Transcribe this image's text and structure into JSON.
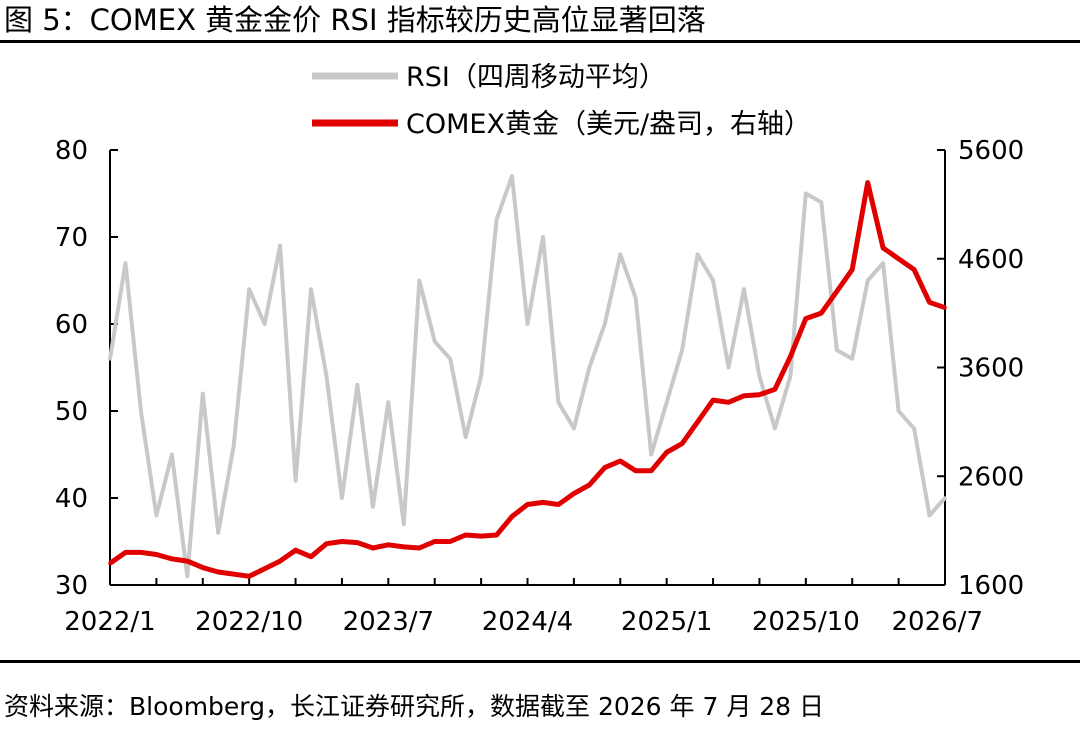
{
  "figure": {
    "title": "图 5：COMEX 黄金金价 RSI 指标较历史高位显著回落",
    "source": "资料来源：Bloomberg，长江证券研究所，数据截至 2026 年 7 月 28 日"
  },
  "colors": {
    "rsi": "#c8c8c8",
    "gold": "#e00000",
    "axis": "#000000"
  },
  "chart_data": {
    "type": "line",
    "title": "",
    "legend_position": "top",
    "x": [
      "2022/1",
      "2022/2",
      "2022/3",
      "2022/4",
      "2022/5",
      "2022/6",
      "2022/7",
      "2022/8",
      "2022/9",
      "2022/10",
      "2022/11",
      "2022/12",
      "2023/1",
      "2023/2",
      "2023/3",
      "2023/4",
      "2023/5",
      "2023/6",
      "2023/7",
      "2023/8",
      "2023/9",
      "2023/10",
      "2023/11",
      "2023/12",
      "2024/1",
      "2024/2",
      "2024/3",
      "2024/4",
      "2024/5",
      "2024/6",
      "2024/7",
      "2024/8",
      "2024/9",
      "2024/10",
      "2024/11",
      "2024/12",
      "2025/1",
      "2025/2",
      "2025/3",
      "2025/4",
      "2025/5",
      "2025/6",
      "2025/7",
      "2025/8",
      "2025/9",
      "2025/10",
      "2025/11",
      "2025/12",
      "2026/1",
      "2026/2",
      "2026/3",
      "2026/4",
      "2026/5",
      "2026/6",
      "2026/7"
    ],
    "x_tick_labels": [
      "2022/1",
      "2022/10",
      "2023/7",
      "2024/4",
      "2025/1",
      "2025/10",
      "2026/7"
    ],
    "y_left": {
      "ticks": [
        30,
        40,
        50,
        60,
        70,
        80
      ],
      "ylim": [
        30,
        80
      ]
    },
    "y_right": {
      "ticks": [
        1600,
        2600,
        3600,
        4600,
        5600
      ],
      "ylim": [
        1600,
        5600
      ]
    },
    "series": [
      {
        "name": "RSI（四周移动平均）",
        "axis": "left",
        "values": [
          56,
          67,
          50,
          38,
          45,
          31,
          52,
          36,
          46,
          64,
          60,
          69,
          42,
          64,
          54,
          40,
          53,
          39,
          51,
          37,
          65,
          58,
          56,
          47,
          54,
          72,
          77,
          60,
          70,
          51,
          48,
          55,
          60,
          68,
          63,
          45,
          51,
          57,
          68,
          65,
          55,
          64,
          54,
          48,
          54,
          75,
          74,
          57,
          56,
          65,
          67,
          50,
          48,
          38,
          40
        ]
      },
      {
        "name": "COMEX黄金（美元/盎司，右轴）",
        "axis": "right",
        "values": [
          1800,
          1900,
          1900,
          1880,
          1840,
          1820,
          1760,
          1720,
          1700,
          1680,
          1750,
          1820,
          1920,
          1860,
          1980,
          2000,
          1990,
          1940,
          1970,
          1950,
          1940,
          2000,
          2000,
          2060,
          2050,
          2060,
          2230,
          2340,
          2360,
          2340,
          2440,
          2520,
          2680,
          2740,
          2650,
          2650,
          2820,
          2900,
          3100,
          3300,
          3280,
          3340,
          3350,
          3400,
          3700,
          4050,
          4100,
          4300,
          4500,
          5300,
          4700,
          4600,
          4500,
          4200,
          4150
        ]
      }
    ]
  }
}
